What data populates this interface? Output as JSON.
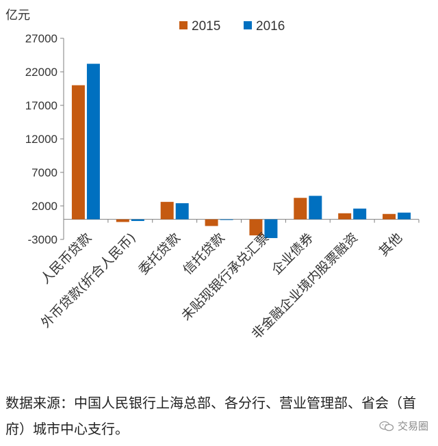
{
  "chart_data": {
    "type": "bar",
    "ylabel": "亿元",
    "ylim": [
      -3000,
      27000
    ],
    "yticks": [
      -3000,
      2000,
      7000,
      12000,
      17000,
      22000,
      27000
    ],
    "grid": false,
    "legend_position": "top",
    "categories": [
      "人民币贷款",
      "外币贷款(折合人民币)",
      "委托贷款",
      "信托贷款",
      "未贴现银行承兑汇票",
      "企业债券",
      "非金融企业境内股票融资",
      "其他"
    ],
    "series": [
      {
        "name": "2015",
        "color": "#C55A11",
        "values": [
          20000,
          -400,
          2600,
          -1000,
          -2400,
          3200,
          900,
          800
        ]
      },
      {
        "name": "2016",
        "color": "#0070C0",
        "values": [
          23200,
          -250,
          2400,
          -50,
          -2800,
          3500,
          1600,
          1000
        ]
      }
    ]
  },
  "source_note": "数据来源：中国人民银行上海总部、各分行、营业管理部、省会（首府）城市中心支行。",
  "watermark": {
    "text": "交易圈",
    "icon": "wechat-icon"
  },
  "colors": {
    "axis": "#7f7f7f",
    "text": "#333333"
  }
}
